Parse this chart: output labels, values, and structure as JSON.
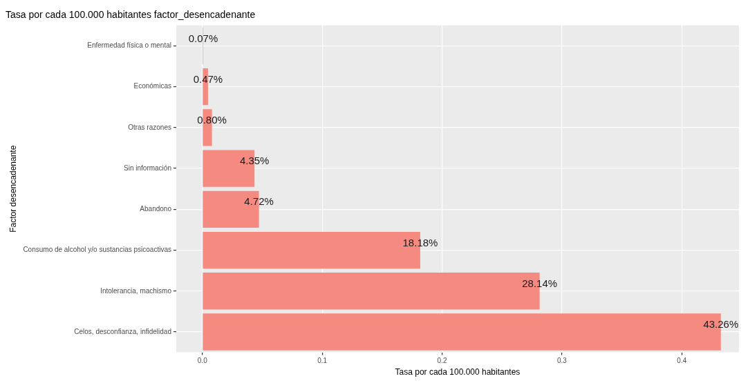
{
  "chart_data": {
    "type": "bar",
    "orientation": "horizontal",
    "title": "Tasa por cada 100.000 habitantes factor_desencadenante",
    "xlabel": "Tasa por cada 100.000 habitantes",
    "ylabel": "Factor desencadenante",
    "categories": [
      "Enfermedad física o mental",
      "Económicas",
      "Otras razones",
      "Sin información",
      "Abandono",
      "Consumo de alcohol y/o sustancias psicoactivas",
      "Intolerancia, machismo",
      "Celos, desconfianza, infidelidad"
    ],
    "values": [
      0.0007,
      0.0047,
      0.008,
      0.0435,
      0.0472,
      0.1818,
      0.2814,
      0.4326
    ],
    "value_labels": [
      "0.07%",
      "0.47%",
      "0.80%",
      "4.35%",
      "4.72%",
      "18.18%",
      "28.14%",
      "43.26%"
    ],
    "color": "#f48a80",
    "xlim": [
      -0.0218,
      0.4477
    ],
    "xticks": [
      {
        "value": 0,
        "label": "0.0"
      },
      0.1,
      0.2,
      0.3,
      0.4
    ],
    "grid": true,
    "legend": false
  }
}
